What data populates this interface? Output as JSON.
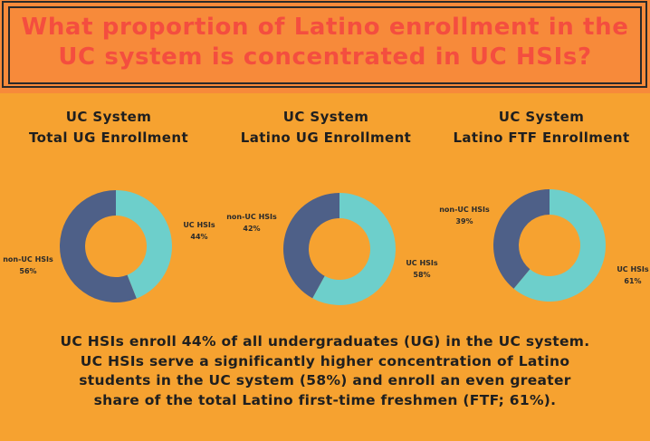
{
  "header": {
    "title_line1": "What proportion of Latino enrollment in the",
    "title_line2": "UC system is concentrated in UC HSIs?"
  },
  "colors": {
    "background": "#F6A230",
    "header_background": "#F78A3A",
    "title_color": "#F44E3F",
    "uc_hsi": "#6DCFCB",
    "non_uc_hsi": "#4E6088"
  },
  "chart_data": [
    {
      "type": "pie",
      "title_line1": "UC System",
      "title_line2": "Total UG Enrollment",
      "slices": [
        {
          "name": "UC HSIs",
          "value": 44,
          "label": "44%"
        },
        {
          "name": "non-UC HSIs",
          "value": 56,
          "label": "56%"
        }
      ]
    },
    {
      "type": "pie",
      "title_line1": "UC System",
      "title_line2": "Latino UG Enrollment",
      "slices": [
        {
          "name": "UC HSIs",
          "value": 58,
          "label": "58%"
        },
        {
          "name": "non-UC HSIs",
          "value": 42,
          "label": "42%"
        }
      ]
    },
    {
      "type": "pie",
      "title_line1": "UC System",
      "title_line2": "Latino FTF Enrollment",
      "slices": [
        {
          "name": "UC HSIs",
          "value": 61,
          "label": "61%"
        },
        {
          "name": "non-UC HSIs",
          "value": 39,
          "label": "39%"
        }
      ]
    }
  ],
  "summary": {
    "line1": "UC HSIs enroll 44% of all undergraduates (UG) in the UC system.",
    "line2": "UC HSIs serve a significantly higher concentration of Latino",
    "line3": "students in the UC system (58%) and enroll an even greater",
    "line4": "share of the total Latino first-time freshmen (FTF; 61%)."
  }
}
